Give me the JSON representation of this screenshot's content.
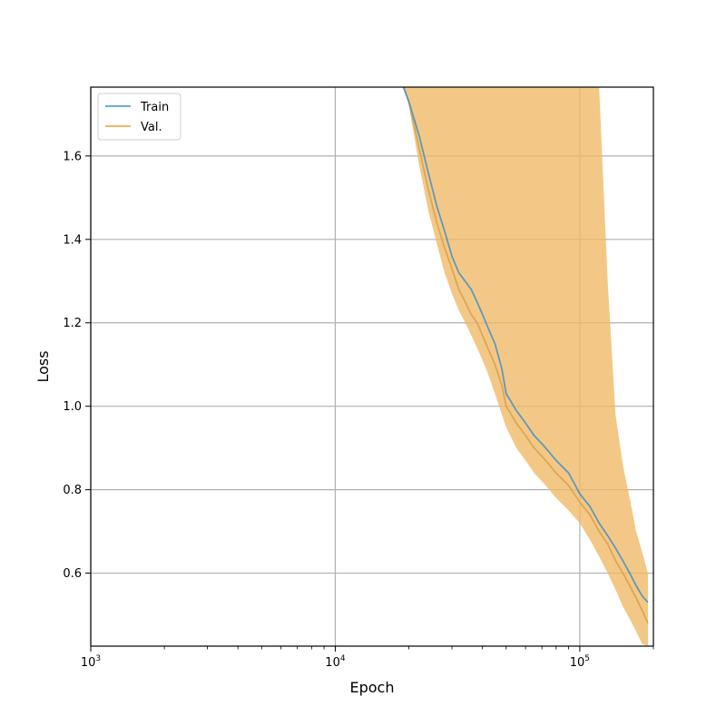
{
  "chart_data": {
    "type": "line",
    "xlabel": "Epoch",
    "ylabel": "Loss",
    "x_scale": "log",
    "xlim": [
      1000,
      200000
    ],
    "ylim": [
      0.425,
      1.765
    ],
    "x_major_ticks": [
      1000,
      10000,
      100000
    ],
    "x_tick_labels": [
      {
        "base": "10",
        "exp": "3"
      },
      {
        "base": "10",
        "exp": "4"
      },
      {
        "base": "10",
        "exp": "5"
      }
    ],
    "y_ticks": [
      0.6,
      0.8,
      1.0,
      1.2,
      1.4,
      1.6
    ],
    "y_tick_labels": [
      "0.6",
      "0.8",
      "1.0",
      "1.2",
      "1.4",
      "1.6"
    ],
    "grid": true,
    "legend_position": "top-left",
    "colors": {
      "train": "#6baed6",
      "val": "#f0b965"
    },
    "series": [
      {
        "name": "Train",
        "x": [
          19000,
          20000,
          22000,
          24000,
          26000,
          28000,
          30000,
          32000,
          34000,
          36000,
          38000,
          40000,
          42000,
          45000,
          48000,
          50000,
          55000,
          60000,
          65000,
          70000,
          75000,
          80000,
          90000,
          100000,
          110000,
          120000,
          130000,
          140000,
          150000,
          160000,
          170000,
          180000,
          190000
        ],
        "values": [
          1.765,
          1.73,
          1.65,
          1.56,
          1.48,
          1.42,
          1.36,
          1.32,
          1.3,
          1.28,
          1.25,
          1.22,
          1.19,
          1.15,
          1.09,
          1.03,
          0.99,
          0.96,
          0.93,
          0.91,
          0.89,
          0.87,
          0.84,
          0.79,
          0.76,
          0.72,
          0.69,
          0.66,
          0.63,
          0.6,
          0.57,
          0.545,
          0.53
        ]
      },
      {
        "name": "Val.",
        "x": [
          19000,
          20000,
          22000,
          24000,
          26000,
          28000,
          30000,
          32000,
          34000,
          36000,
          38000,
          40000,
          42000,
          45000,
          48000,
          50000,
          55000,
          60000,
          65000,
          70000,
          75000,
          80000,
          90000,
          100000,
          110000,
          120000,
          130000,
          140000,
          150000,
          160000,
          170000,
          180000,
          190000
        ],
        "values": [
          1.765,
          1.73,
          1.62,
          1.52,
          1.44,
          1.38,
          1.33,
          1.28,
          1.25,
          1.22,
          1.2,
          1.17,
          1.14,
          1.1,
          1.05,
          1.0,
          0.96,
          0.93,
          0.9,
          0.88,
          0.86,
          0.84,
          0.81,
          0.77,
          0.74,
          0.7,
          0.67,
          0.63,
          0.6,
          0.57,
          0.54,
          0.51,
          0.48
        ],
        "upper": [
          1.765,
          1.765,
          1.765,
          1.765,
          1.765,
          1.765,
          1.765,
          1.765,
          1.765,
          1.765,
          1.765,
          1.765,
          1.765,
          1.765,
          1.765,
          1.765,
          1.765,
          1.765,
          1.765,
          1.765,
          1.765,
          1.765,
          1.765,
          1.765,
          1.765,
          1.765,
          1.3,
          0.98,
          0.86,
          0.78,
          0.7,
          0.65,
          0.6
        ],
        "lower": [
          1.765,
          1.72,
          1.58,
          1.47,
          1.39,
          1.32,
          1.27,
          1.23,
          1.2,
          1.17,
          1.14,
          1.11,
          1.08,
          1.03,
          0.98,
          0.95,
          0.9,
          0.87,
          0.84,
          0.82,
          0.8,
          0.78,
          0.75,
          0.72,
          0.68,
          0.64,
          0.6,
          0.56,
          0.52,
          0.49,
          0.46,
          0.43,
          0.425
        ]
      }
    ]
  }
}
